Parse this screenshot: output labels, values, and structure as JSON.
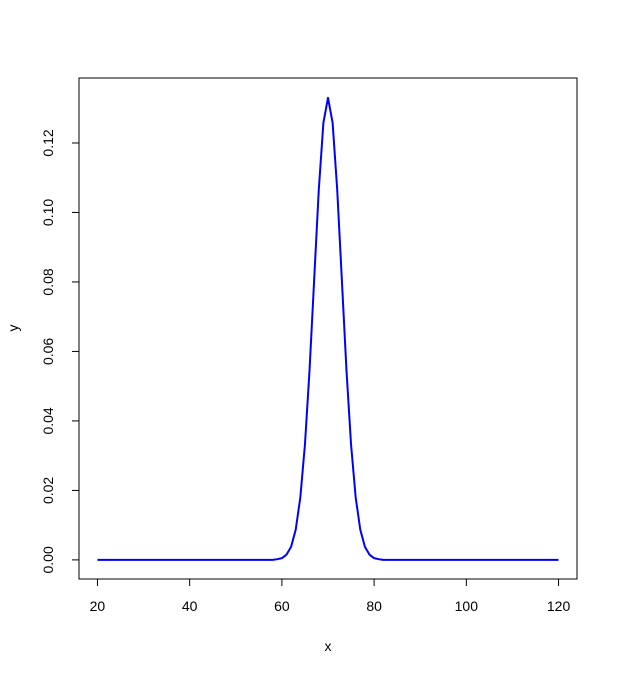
{
  "chart_data": {
    "type": "line",
    "xlabel": "x",
    "ylabel": "y",
    "x": [
      20,
      30,
      40,
      50,
      55,
      58,
      59,
      60,
      61,
      62,
      63,
      64,
      65,
      66,
      67,
      68,
      69,
      70,
      71,
      72,
      73,
      74,
      75,
      76,
      77,
      78,
      79,
      80,
      81,
      82,
      85,
      90,
      100,
      110,
      120
    ],
    "series": [
      {
        "color": "#0000ff",
        "values": [
          0,
          0,
          0,
          0,
          0,
          0,
          0.0002,
          0.0005,
          0.0015,
          0.0038,
          0.0087,
          0.018,
          0.0332,
          0.0547,
          0.0807,
          0.1065,
          0.1258,
          0.133,
          0.1258,
          0.1065,
          0.0807,
          0.0547,
          0.0332,
          0.018,
          0.0087,
          0.0038,
          0.0015,
          0.0005,
          0.0002,
          0,
          0,
          0,
          0,
          0,
          0
        ]
      }
    ],
    "xlim": [
      16,
      124
    ],
    "ylim": [
      -0.0055,
      0.1387
    ],
    "xticks": [
      20,
      40,
      60,
      80,
      100,
      120
    ],
    "yticks": [
      {
        "value": 0,
        "label": "0.00"
      },
      {
        "value": 0.02,
        "label": "0.02"
      },
      {
        "value": 0.04,
        "label": "0.04"
      },
      {
        "value": 0.06,
        "label": "0.06"
      },
      {
        "value": 0.08,
        "label": "0.08"
      },
      {
        "value": 0.1,
        "label": "0.10"
      },
      {
        "value": 0.12,
        "label": "0.12"
      }
    ],
    "grid": false
  }
}
